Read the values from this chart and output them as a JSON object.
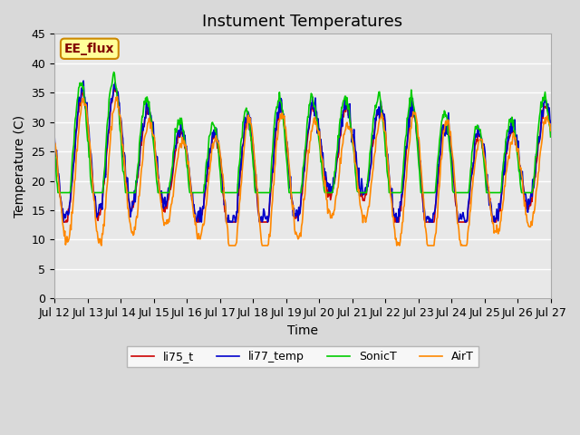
{
  "title": "Instument Temperatures",
  "xlabel": "Time",
  "ylabel": "Temperature (C)",
  "ylim": [
    0,
    45
  ],
  "annotation": "EE_flux",
  "x_tick_labels": [
    "Jul 12",
    "Jul 13",
    "Jul 14",
    "Jul 15",
    "Jul 16",
    "Jul 17",
    "Jul 18",
    "Jul 19",
    "Jul 20",
    "Jul 21",
    "Jul 22",
    "Jul 23",
    "Jul 24",
    "Jul 25",
    "Jul 26",
    "Jul 27"
  ],
  "line_colors": {
    "li75_t": "#cc0000",
    "li77_temp": "#0000cc",
    "SonicT": "#00cc00",
    "AirT": "#ff8800"
  },
  "legend_labels": [
    "li75_t",
    "li77_temp",
    "SonicT",
    "AirT"
  ],
  "title_fontsize": 13,
  "annotation_bg": "#ffff99",
  "annotation_border": "#cc8800",
  "annotation_text_color": "#800000"
}
